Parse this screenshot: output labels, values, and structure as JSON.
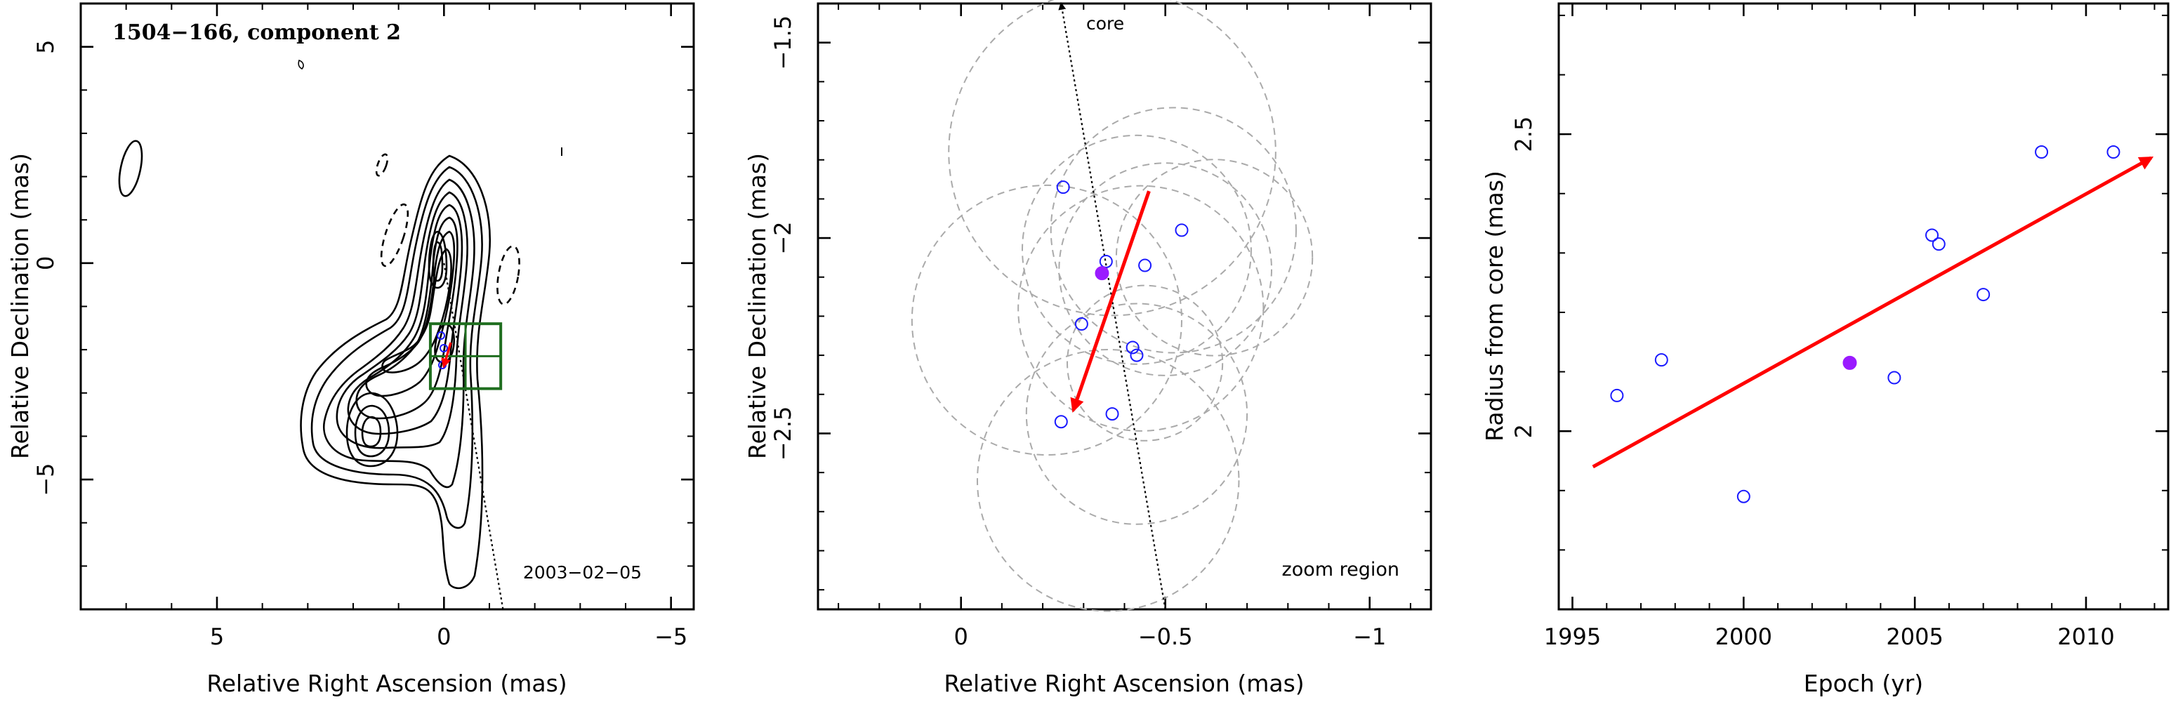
{
  "chart_data": [
    {
      "type": "contour",
      "title": "1504−166, component 2",
      "annotation": "2003−02−05",
      "xlabel": "Relative Right Ascension (mas)",
      "ylabel": "Relative Declination (mas)",
      "xlim": [
        8,
        -5.5
      ],
      "ylim": [
        -8,
        6
      ],
      "xticks": [
        {
          "v": 5,
          "label": "5"
        },
        {
          "v": 0,
          "label": "0"
        },
        {
          "v": -5,
          "label": "−5"
        }
      ],
      "yticks": [
        {
          "v": -5,
          "label": "−5"
        },
        {
          "v": 0,
          "label": "0"
        },
        {
          "v": 5,
          "label": "5"
        }
      ],
      "boxes": [
        {
          "x": [
            -1.25,
            0.3
          ],
          "y": [
            -1.4,
            -2.9
          ]
        },
        {
          "x": [
            -1.25,
            0.3
          ],
          "y": [
            -2.15,
            -2.15
          ]
        }
      ],
      "core_line": {
        "from": [
          0.0,
          0.0
        ],
        "to": [
          -1.3,
          -8.0
        ]
      },
      "colors": {
        "contour": "#000000",
        "box": "#1f6e1f",
        "arrow": "#ff0000"
      }
    },
    {
      "type": "scatter",
      "annotation_top": "core",
      "annotation": "zoom region",
      "xlabel": "Relative Right Ascension (mas)",
      "ylabel": "Relative Declination (mas)",
      "xlim": [
        0.35,
        -1.15
      ],
      "ylim": [
        -2.95,
        -1.4
      ],
      "xticks": [
        {
          "v": 0,
          "label": "0"
        },
        {
          "v": -0.5,
          "label": "−0.5"
        },
        {
          "v": -1,
          "label": "−1"
        }
      ],
      "yticks": [
        {
          "v": -2.5,
          "label": "−2.5"
        },
        {
          "v": -2,
          "label": "−2"
        },
        {
          "v": -1.5,
          "label": "−1.5"
        }
      ],
      "points": [
        {
          "x": -0.25,
          "y": -1.87,
          "filled": false
        },
        {
          "x": -0.54,
          "y": -1.98,
          "filled": false
        },
        {
          "x": -0.355,
          "y": -2.06,
          "filled": false
        },
        {
          "x": -0.45,
          "y": -2.07,
          "filled": false
        },
        {
          "x": -0.345,
          "y": -2.09,
          "filled": true
        },
        {
          "x": -0.295,
          "y": -2.22,
          "filled": false
        },
        {
          "x": -0.42,
          "y": -2.28,
          "filled": false
        },
        {
          "x": -0.43,
          "y": -2.3,
          "filled": false
        },
        {
          "x": -0.37,
          "y": -2.45,
          "filled": false
        },
        {
          "x": -0.245,
          "y": -2.47,
          "filled": false
        }
      ],
      "circles": [
        {
          "x": -0.37,
          "y": -1.78,
          "r": 0.4
        },
        {
          "x": -0.62,
          "y": -2.05,
          "r": 0.24
        },
        {
          "x": -0.52,
          "y": -1.98,
          "r": 0.3
        },
        {
          "x": -0.43,
          "y": -2.03,
          "r": 0.28
        },
        {
          "x": -0.5,
          "y": -2.08,
          "r": 0.26
        },
        {
          "x": -0.21,
          "y": -2.21,
          "r": 0.33
        },
        {
          "x": -0.44,
          "y": -2.18,
          "r": 0.3
        },
        {
          "x": -0.45,
          "y": -2.32,
          "r": 0.19
        },
        {
          "x": -0.43,
          "y": -2.45,
          "r": 0.27
        },
        {
          "x": -0.36,
          "y": -2.62,
          "r": 0.32
        }
      ],
      "core_line": {
        "from": [
          -0.245,
          -1.4
        ],
        "to": [
          -0.5,
          -2.95
        ]
      },
      "arrow": {
        "from": [
          -0.46,
          -1.88
        ],
        "to": [
          -0.275,
          -2.44
        ]
      },
      "colors": {
        "open": "#1a1aff",
        "filled": "#9a1aff",
        "circle": "#aaaaaa",
        "arrow": "#ff0000"
      }
    },
    {
      "type": "scatter",
      "xlabel": "Epoch (yr)",
      "ylabel": "Radius from core (mas)",
      "xlim": [
        1994.6,
        2012.4
      ],
      "ylim": [
        1.7,
        2.72
      ],
      "xticks": [
        {
          "v": 1995,
          "label": "1995"
        },
        {
          "v": 2000,
          "label": "2000"
        },
        {
          "v": 2005,
          "label": "2005"
        },
        {
          "v": 2010,
          "label": "2010"
        }
      ],
      "yticks": [
        {
          "v": 2,
          "label": "2"
        },
        {
          "v": 2.5,
          "label": "2.5"
        }
      ],
      "points": [
        {
          "x": 1996.3,
          "y": 2.06,
          "filled": false
        },
        {
          "x": 1997.6,
          "y": 2.12,
          "filled": false
        },
        {
          "x": 2000.0,
          "y": 1.89,
          "filled": false
        },
        {
          "x": 2003.1,
          "y": 2.115,
          "filled": true
        },
        {
          "x": 2004.4,
          "y": 2.09,
          "filled": false
        },
        {
          "x": 2005.5,
          "y": 2.33,
          "filled": false
        },
        {
          "x": 2005.7,
          "y": 2.315,
          "filled": false
        },
        {
          "x": 2007.0,
          "y": 2.23,
          "filled": false
        },
        {
          "x": 2008.7,
          "y": 2.47,
          "filled": false
        },
        {
          "x": 2010.8,
          "y": 2.47,
          "filled": false
        }
      ],
      "arrow": {
        "from": [
          1995.6,
          1.94
        ],
        "to": [
          2011.9,
          2.46
        ]
      },
      "colors": {
        "open": "#1a1aff",
        "filled": "#9a1aff",
        "arrow": "#ff0000"
      }
    }
  ]
}
